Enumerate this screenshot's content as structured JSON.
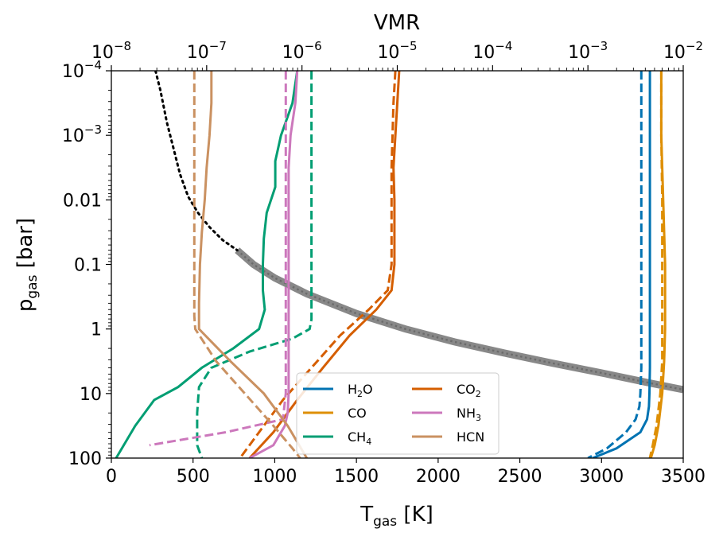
{
  "chart_data": {
    "type": "line",
    "title": "",
    "xlabel": "T",
    "xlabel_sub": "gas",
    "xlabel_unit": " [K]",
    "ylabel": "p",
    "ylabel_sub": "gas",
    "ylabel_unit": " [bar]",
    "top_xlabel": "VMR",
    "xlim": [
      0,
      3500
    ],
    "ylim_log10": [
      2,
      -4
    ],
    "top_xlim_log10": [
      -8,
      -2
    ],
    "x_ticks": [
      {
        "v": 0,
        "label": "0"
      },
      {
        "v": 500,
        "label": "500"
      },
      {
        "v": 1000,
        "label": "1000"
      },
      {
        "v": 1500,
        "label": "1500"
      },
      {
        "v": 2000,
        "label": "2000"
      },
      {
        "v": 2500,
        "label": "2500"
      },
      {
        "v": 3000,
        "label": "3000"
      },
      {
        "v": 3500,
        "label": "3500"
      }
    ],
    "y_ticks": [
      {
        "exp": -4,
        "label": "10",
        "sup": "−4"
      },
      {
        "exp": -3,
        "label": "10",
        "sup": "−3"
      },
      {
        "exp": -2,
        "label": "0.01",
        "sup": ""
      },
      {
        "exp": -1,
        "label": "0.1",
        "sup": ""
      },
      {
        "exp": 0,
        "label": "1",
        "sup": ""
      },
      {
        "exp": 1,
        "label": "10",
        "sup": ""
      },
      {
        "exp": 2,
        "label": "100",
        "sup": ""
      }
    ],
    "top_ticks": [
      {
        "exp": -8,
        "label": "10",
        "sup": "−8"
      },
      {
        "exp": -7,
        "label": "10",
        "sup": "−7"
      },
      {
        "exp": -6,
        "label": "10",
        "sup": "−6"
      },
      {
        "exp": -5,
        "label": "10",
        "sup": "−5"
      },
      {
        "exp": -4,
        "label": "10",
        "sup": "−4"
      },
      {
        "exp": -3,
        "label": "10",
        "sup": "−3"
      },
      {
        "exp": -2,
        "label": "10",
        "sup": "−2"
      }
    ],
    "temperature_profile": {
      "name": "T-p profile",
      "color": "#888888",
      "solid": {
        "T": [
          770,
          870,
          1000,
          1200,
          1500,
          1800,
          2100,
          2400,
          2700,
          3000,
          3300,
          3500
        ],
        "log10p": [
          -1.22,
          -1.0,
          -0.79,
          -0.54,
          -0.24,
          0.0,
          0.2,
          0.37,
          0.53,
          0.68,
          0.84,
          0.94
        ]
      },
      "dotted": {
        "T": [
          270,
          300,
          340,
          380,
          420,
          470,
          530,
          600,
          680,
          770
        ],
        "log10p": [
          -4.0,
          -3.7,
          -3.2,
          -2.8,
          -2.4,
          -2.05,
          -1.8,
          -1.58,
          -1.38,
          -1.22
        ]
      }
    },
    "series": [
      {
        "name": "H",
        "sub": "2",
        "suffix": "O",
        "color": "#0173B2",
        "solid": {
          "log10vmr": [
            -2.35,
            -2.35,
            -2.35,
            -2.35,
            -2.355,
            -2.36,
            -2.38,
            -2.45,
            -2.7,
            -2.95
          ],
          "log10p": [
            -4,
            -2,
            0,
            0.6,
            1.0,
            1.2,
            1.4,
            1.6,
            1.85,
            2.0
          ]
        },
        "dashed": {
          "log10vmr": [
            -2.44,
            -2.44,
            -2.44,
            -2.44,
            -2.45,
            -2.46,
            -2.5,
            -2.6,
            -2.8,
            -3.0
          ],
          "log10p": [
            -4,
            -2,
            0,
            0.6,
            1.0,
            1.2,
            1.4,
            1.6,
            1.85,
            2.0
          ]
        }
      },
      {
        "name": "CO",
        "sub": "",
        "suffix": "",
        "color": "#DE8F05",
        "solid": {
          "log10vmr": [
            -2.23,
            -2.23,
            -2.21,
            -2.19,
            -2.19,
            -2.2,
            -2.22,
            -2.26,
            -2.3,
            -2.34
          ],
          "log10p": [
            -4,
            -3,
            -2,
            -1,
            0,
            0.5,
            1,
            1.5,
            1.8,
            2.0
          ]
        },
        "dashed": {
          "log10vmr": [
            -2.23,
            -2.23,
            -2.22,
            -2.22,
            -2.22,
            -2.22,
            -2.24,
            -2.28,
            -2.32,
            -2.35
          ],
          "log10p": [
            -4,
            -3,
            -2,
            -1,
            0,
            0.5,
            1,
            1.5,
            1.8,
            2.0
          ]
        }
      },
      {
        "name": "CH",
        "sub": "4",
        "suffix": "",
        "color": "#029E73",
        "solid": {
          "log10vmr": [
            -6.05,
            -6.1,
            -6.22,
            -6.28,
            -6.28,
            -6.37,
            -6.4,
            -6.41,
            -6.41,
            -6.39,
            -6.45,
            -6.72,
            -7.05,
            -7.3,
            -7.55,
            -7.75,
            -7.95
          ],
          "log10p": [
            -4,
            -3.5,
            -3.0,
            -2.6,
            -2.2,
            -1.8,
            -1.4,
            -1.0,
            -0.6,
            -0.3,
            0,
            0.3,
            0.6,
            0.9,
            1.1,
            1.5,
            2.0
          ]
        },
        "dashed": {
          "log10vmr": [
            -5.9,
            -5.9,
            -5.9,
            -5.9,
            -5.9,
            -5.9,
            -5.92,
            -6.1,
            -6.55,
            -6.95,
            -7.08,
            -7.1,
            -7.1,
            -7.05
          ],
          "log10p": [
            -4,
            -3,
            -2,
            -1,
            -0.3,
            -0.15,
            0,
            0.15,
            0.35,
            0.6,
            0.9,
            1.3,
            1.8,
            2.0
          ]
        }
      },
      {
        "name": "CO",
        "sub": "2",
        "suffix": "",
        "color": "#D55E00",
        "solid": {
          "log10vmr": [
            -4.98,
            -5.0,
            -5.02,
            -5.04,
            -5.03,
            -5.03,
            -5.06,
            -5.22,
            -5.5,
            -5.78,
            -6.05,
            -6.3,
            -6.55
          ],
          "log10p": [
            -4,
            -3.5,
            -3.0,
            -2.5,
            -2.0,
            -1.0,
            -0.6,
            -0.3,
            0.1,
            0.6,
            1.1,
            1.6,
            2.0
          ]
        },
        "dashed": {
          "log10vmr": [
            -5.02,
            -5.04,
            -5.05,
            -5.06,
            -5.06,
            -5.06,
            -5.1,
            -5.3,
            -5.6,
            -5.9,
            -6.2,
            -6.45,
            -6.65
          ],
          "log10p": [
            -4,
            -3.5,
            -3.0,
            -2.5,
            -2.0,
            -1.0,
            -0.6,
            -0.3,
            0.1,
            0.6,
            1.1,
            1.6,
            2.0
          ]
        }
      },
      {
        "name": "NH",
        "sub": "3",
        "suffix": "",
        "color": "#CC78BC",
        "solid": {
          "log10vmr": [
            -6.05,
            -6.07,
            -6.12,
            -6.14,
            -6.14,
            -6.14,
            -6.14,
            -6.14,
            -6.14,
            -6.15,
            -6.18,
            -6.3,
            -6.55
          ],
          "log10p": [
            -4,
            -3.5,
            -3.0,
            -2.5,
            -2.0,
            -1.0,
            0,
            0.5,
            1.0,
            1.3,
            1.5,
            1.8,
            2.0
          ]
        },
        "dashed": {
          "log10vmr": [
            -6.17,
            -6.17,
            -6.17,
            -6.17,
            -6.17,
            -6.17,
            -6.17,
            -6.17,
            -6.17,
            -6.2,
            -6.8,
            -7.6
          ],
          "log10p": [
            -4,
            -3.5,
            -3.0,
            -2.5,
            -2.0,
            -1.0,
            0,
            0.5,
            1.0,
            1.4,
            1.6,
            1.8
          ]
        }
      },
      {
        "name": "HCN",
        "sub": "",
        "suffix": "",
        "color": "#CA9161",
        "solid": {
          "log10vmr": [
            -6.95,
            -6.95,
            -6.97,
            -7.0,
            -7.02,
            -7.05,
            -7.07,
            -7.08,
            -7.08,
            -6.75,
            -6.4,
            -6.15,
            -5.95
          ],
          "log10p": [
            -4,
            -3.5,
            -3.0,
            -2.5,
            -2.0,
            -1.5,
            -1.0,
            -0.4,
            0.0,
            0.5,
            1.0,
            1.5,
            2.0
          ]
        },
        "dashed": {
          "log10vmr": [
            -7.13,
            -7.13,
            -7.13,
            -7.13,
            -7.13,
            -7.13,
            -7.12,
            -6.9,
            -6.6,
            -6.3,
            -6.1,
            -6.02
          ],
          "log10p": [
            -4,
            -3,
            -2,
            -1,
            -0.3,
            -0.2,
            0.0,
            0.5,
            1.0,
            1.5,
            1.85,
            2.0
          ]
        }
      }
    ]
  }
}
